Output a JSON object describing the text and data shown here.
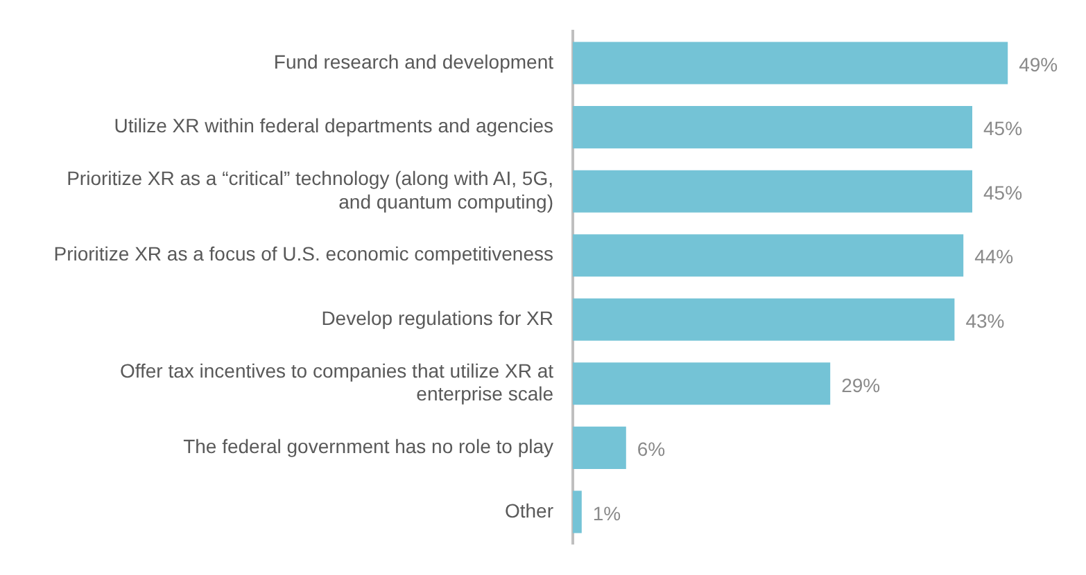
{
  "chart_data": {
    "type": "bar",
    "orientation": "horizontal",
    "categories": [
      "Fund research and development",
      "Utilize XR within federal departments and agencies",
      "Prioritize XR as a “critical” technology (along with AI, 5G, and quantum computing)",
      "Prioritize XR as a focus of U.S. economic competitiveness",
      "Develop regulations for XR",
      "Offer tax incentives to companies that utilize XR at enterprise scale",
      "The federal government has no role to play",
      "Other"
    ],
    "values": [
      49,
      45,
      45,
      44,
      43,
      29,
      6,
      1
    ],
    "value_labels": [
      "49%",
      "45%",
      "45%",
      "44%",
      "43%",
      "29%",
      "6%",
      "1%"
    ],
    "color": "#74c3d6"
  }
}
